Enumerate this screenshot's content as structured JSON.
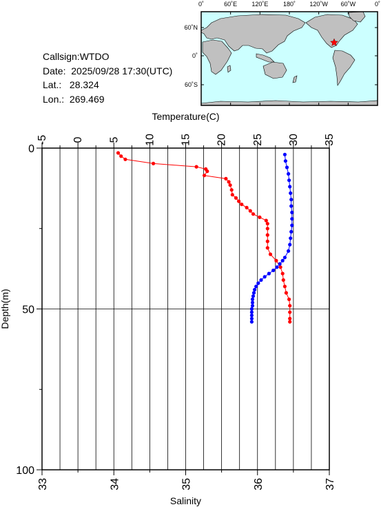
{
  "station": {
    "callsign_label": "Callsign:",
    "callsign": "WTDO",
    "date_label": "Date:",
    "date": "2025/09/28 17:30(UTC)",
    "lat_label": "Lat.:",
    "lat": "28.324",
    "lon_label": "Lon.:",
    "lon": "269.469"
  },
  "map": {
    "lon_ticks": [
      "0˚",
      "60˚E",
      "120˚E",
      "180˚",
      "120˚W",
      "60˚W",
      "0˚"
    ],
    "lat_ticks": [
      "60˚N",
      "0˚",
      "60˚S"
    ],
    "colors": {
      "ocean": "#ccffff",
      "land": "#c0c0c0",
      "marker": "#ff0000"
    }
  },
  "chart_data": {
    "type": "scatter",
    "title": "",
    "ylabel": "Depth(m)",
    "ylim": [
      0,
      100
    ],
    "y_reversed": true,
    "yticks": [
      "0",
      "50",
      "100"
    ],
    "temperature_axis": {
      "label": "Temperature(C)",
      "range": [
        -5,
        35
      ],
      "ticks": [
        "-5",
        "0",
        "5",
        "10",
        "15",
        "20",
        "25",
        "30",
        "35"
      ]
    },
    "salinity_axis": {
      "label": "Salinity",
      "range": [
        33,
        37
      ],
      "ticks": [
        "33",
        "34",
        "35",
        "36",
        "37"
      ]
    },
    "grid": true,
    "series": [
      {
        "color": "#ff0000",
        "axis": "temperature",
        "depth": [
          1.5,
          2.5,
          3.5,
          4.8,
          5.8,
          6.5,
          7.2,
          8.5,
          9.5,
          10.5,
          11.5,
          13.0,
          14.5,
          15.5,
          16.5,
          17.5,
          18.5,
          19.5,
          20.5,
          21.5,
          22.5,
          23.5,
          25,
          27,
          29,
          31,
          33,
          35,
          37,
          39,
          41,
          43,
          45,
          47,
          49,
          51,
          53,
          54
        ],
        "values": [
          5.6,
          6.0,
          6.6,
          10.5,
          16.5,
          17.8,
          18.0,
          17.6,
          20.6,
          21.0,
          21.2,
          21.4,
          21.5,
          22.0,
          22.4,
          22.8,
          23.5,
          24.0,
          24.4,
          25.3,
          26.2,
          26.4,
          26.4,
          26.4,
          26.4,
          26.4,
          26.8,
          27.6,
          28.2,
          28.5,
          28.6,
          28.8,
          29.0,
          29.4,
          29.5,
          29.5,
          29.5,
          29.5
        ]
      },
      {
        "color": "#0000ff",
        "axis": "salinity",
        "depth": [
          2,
          4,
          6,
          8,
          10,
          12,
          14,
          16,
          18,
          20,
          22,
          24,
          26,
          28,
          30,
          32,
          34,
          35,
          36,
          37,
          38,
          39,
          40,
          41,
          42,
          43,
          44,
          45,
          46,
          47,
          48,
          49,
          50,
          51,
          52,
          53,
          54
        ],
        "values": [
          36.38,
          36.39,
          36.41,
          36.43,
          36.44,
          36.45,
          36.46,
          36.47,
          36.47,
          36.48,
          36.48,
          36.48,
          36.47,
          36.46,
          36.45,
          36.43,
          36.38,
          36.35,
          36.31,
          36.27,
          36.22,
          36.16,
          36.1,
          36.05,
          36.01,
          35.98,
          35.96,
          35.95,
          35.94,
          35.93,
          35.93,
          35.93,
          35.92,
          35.92,
          35.92,
          35.92,
          35.92
        ]
      }
    ]
  }
}
